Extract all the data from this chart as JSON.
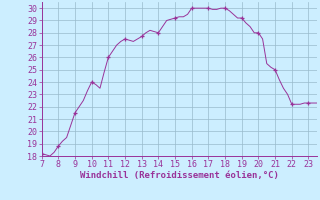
{
  "x": [
    7,
    7.25,
    7.5,
    7.75,
    8,
    8.25,
    8.5,
    8.75,
    9,
    9.25,
    9.5,
    9.75,
    10,
    10.25,
    10.5,
    10.75,
    11,
    11.25,
    11.5,
    11.75,
    12,
    12.25,
    12.5,
    12.75,
    13,
    13.25,
    13.5,
    13.75,
    14,
    14.25,
    14.5,
    14.75,
    15,
    15.25,
    15.5,
    15.75,
    16,
    16.25,
    16.5,
    16.75,
    17,
    17.25,
    17.5,
    17.75,
    18,
    18.25,
    18.5,
    18.75,
    19,
    19.25,
    19.5,
    19.75,
    20,
    20.25,
    20.5,
    20.75,
    21,
    21.25,
    21.5,
    21.75,
    22,
    22.25,
    22.5,
    22.75,
    23,
    23.25,
    23.5
  ],
  "y": [
    18.2,
    18.1,
    18.0,
    18.3,
    18.8,
    19.2,
    19.5,
    20.5,
    21.5,
    22.0,
    22.5,
    23.3,
    24.0,
    23.8,
    23.5,
    24.8,
    26.0,
    26.5,
    27.0,
    27.3,
    27.5,
    27.4,
    27.3,
    27.5,
    27.7,
    28.0,
    28.2,
    28.1,
    28.0,
    28.5,
    29.0,
    29.1,
    29.2,
    29.3,
    29.3,
    29.5,
    30.0,
    30.0,
    30.0,
    30.0,
    30.0,
    29.9,
    29.9,
    30.0,
    30.0,
    29.8,
    29.5,
    29.2,
    29.2,
    28.8,
    28.5,
    28.0,
    28.0,
    27.5,
    25.5,
    25.2,
    25.0,
    24.2,
    23.5,
    23.0,
    22.2,
    22.2,
    22.2,
    22.3,
    22.3,
    22.3,
    22.3
  ],
  "marker_x": [
    7,
    8,
    9,
    10,
    11,
    12,
    13,
    14,
    15,
    16,
    17,
    18,
    19,
    20,
    21,
    22,
    23
  ],
  "marker_y": [
    18.2,
    18.8,
    21.5,
    24.0,
    26.0,
    27.5,
    27.7,
    28.0,
    29.2,
    30.0,
    30.0,
    30.0,
    29.2,
    28.0,
    25.0,
    22.2,
    22.3
  ],
  "line_color": "#993399",
  "marker_color": "#993399",
  "bg_color": "#cceeff",
  "grid_color": "#99bbcc",
  "axis_color": "#993399",
  "xlabel": "Windchill (Refroidissement éolien,°C)",
  "xlim": [
    7,
    23.5
  ],
  "ylim": [
    18,
    30.5
  ],
  "yticks": [
    18,
    19,
    20,
    21,
    22,
    23,
    24,
    25,
    26,
    27,
    28,
    29,
    30
  ],
  "xticks": [
    7,
    8,
    9,
    10,
    11,
    12,
    13,
    14,
    15,
    16,
    17,
    18,
    19,
    20,
    21,
    22,
    23
  ],
  "label_fontsize": 6.5,
  "tick_fontsize": 6.0
}
